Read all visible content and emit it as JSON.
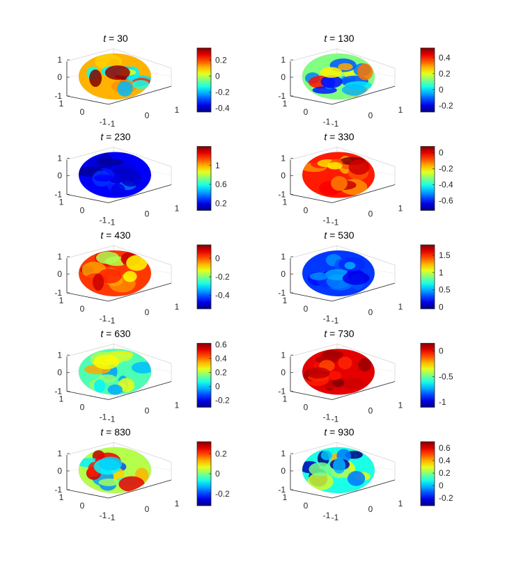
{
  "chart_data": [
    {
      "type": "surface",
      "title_var": "t",
      "title_value": "30",
      "ticks": [
        "1",
        "0",
        "-1"
      ],
      "xticks": [
        "-1",
        "0",
        "1"
      ],
      "yticks": [
        "1",
        "0",
        "-1"
      ],
      "colorbar_ticks": [
        "0.2",
        "0",
        "-0.2",
        "-0.4"
      ],
      "clim": [
        -0.45,
        0.35
      ],
      "surface_level": 0.7,
      "variation": "high"
    },
    {
      "type": "surface",
      "title_var": "t",
      "title_value": "130",
      "ticks": [
        "1",
        "0",
        "-1"
      ],
      "xticks": [
        "-1",
        "0",
        "1"
      ],
      "yticks": [
        "1",
        "0",
        "-1"
      ],
      "colorbar_ticks": [
        "0.4",
        "0.2",
        "0",
        "-0.2"
      ],
      "clim": [
        -0.28,
        0.52
      ],
      "surface_level": 0.5,
      "variation": "high"
    },
    {
      "type": "surface",
      "title_var": "t",
      "title_value": "230",
      "ticks": [
        "1",
        "0",
        "-1"
      ],
      "xticks": [
        "-1",
        "0",
        "1"
      ],
      "yticks": [
        "1",
        "0",
        "-1"
      ],
      "colorbar_ticks": [
        "1",
        "0.6",
        "0.2"
      ],
      "clim": [
        0.05,
        1.4
      ],
      "surface_level": 0.12,
      "variation": "low"
    },
    {
      "type": "surface",
      "title_var": "t",
      "title_value": "330",
      "ticks": [
        "1",
        "0",
        "-1"
      ],
      "xticks": [
        "-1",
        "0",
        "1"
      ],
      "yticks": [
        "1",
        "0",
        "-1"
      ],
      "colorbar_ticks": [
        "0",
        "-0.2",
        "-0.4",
        "-0.6"
      ],
      "clim": [
        -0.72,
        0.08
      ],
      "surface_level": 0.85,
      "variation": "medium"
    },
    {
      "type": "surface",
      "title_var": "t",
      "title_value": "430",
      "ticks": [
        "1",
        "0",
        "-1"
      ],
      "xticks": [
        "-1",
        "0",
        "1"
      ],
      "yticks": [
        "1",
        "0",
        "-1"
      ],
      "colorbar_ticks": [
        "0",
        "-0.2",
        "-0.4"
      ],
      "clim": [
        -0.55,
        0.15
      ],
      "surface_level": 0.82,
      "variation": "medium"
    },
    {
      "type": "surface",
      "title_var": "t",
      "title_value": "530",
      "ticks": [
        "1",
        "0",
        "-1"
      ],
      "xticks": [
        "-1",
        "0",
        "1"
      ],
      "yticks": [
        "1",
        "0",
        "-1"
      ],
      "colorbar_ticks": [
        "1.5",
        "1",
        "0.5",
        "0"
      ],
      "clim": [
        -0.05,
        1.8
      ],
      "surface_level": 0.18,
      "variation": "low"
    },
    {
      "type": "surface",
      "title_var": "t",
      "title_value": "630",
      "ticks": [
        "1",
        "0",
        "-1"
      ],
      "xticks": [
        "-1",
        "0",
        "1"
      ],
      "yticks": [
        "1",
        "0",
        "-1"
      ],
      "colorbar_ticks": [
        "0.6",
        "0.4",
        "0.2",
        "0",
        "-0.2"
      ],
      "clim": [
        -0.3,
        0.62
      ],
      "surface_level": 0.45,
      "variation": "medium"
    },
    {
      "type": "surface",
      "title_var": "t",
      "title_value": "730",
      "ticks": [
        "1",
        "0",
        "-1"
      ],
      "xticks": [
        "-1",
        "0",
        "1"
      ],
      "yticks": [
        "1",
        "0",
        "-1"
      ],
      "colorbar_ticks": [
        "0",
        "-0.5",
        "-1"
      ],
      "clim": [
        -1.1,
        0.15
      ],
      "surface_level": 0.9,
      "variation": "low"
    },
    {
      "type": "surface",
      "title_var": "t",
      "title_value": "830",
      "ticks": [
        "1",
        "0",
        "-1"
      ],
      "xticks": [
        "-1",
        "0",
        "1"
      ],
      "yticks": [
        "1",
        "0",
        "-1"
      ],
      "colorbar_ticks": [
        "0.2",
        "0",
        "-0.2"
      ],
      "clim": [
        -0.32,
        0.32
      ],
      "surface_level": 0.55,
      "variation": "high"
    },
    {
      "type": "surface",
      "title_var": "t",
      "title_value": "930",
      "ticks": [
        "1",
        "0",
        "-1"
      ],
      "xticks": [
        "-1",
        "0",
        "1"
      ],
      "yticks": [
        "1",
        "0",
        "-1"
      ],
      "colorbar_ticks": [
        "0.6",
        "0.4",
        "0.2",
        "0",
        "-0.2"
      ],
      "clim": [
        -0.32,
        0.7
      ],
      "surface_level": 0.4,
      "variation": "high"
    }
  ]
}
